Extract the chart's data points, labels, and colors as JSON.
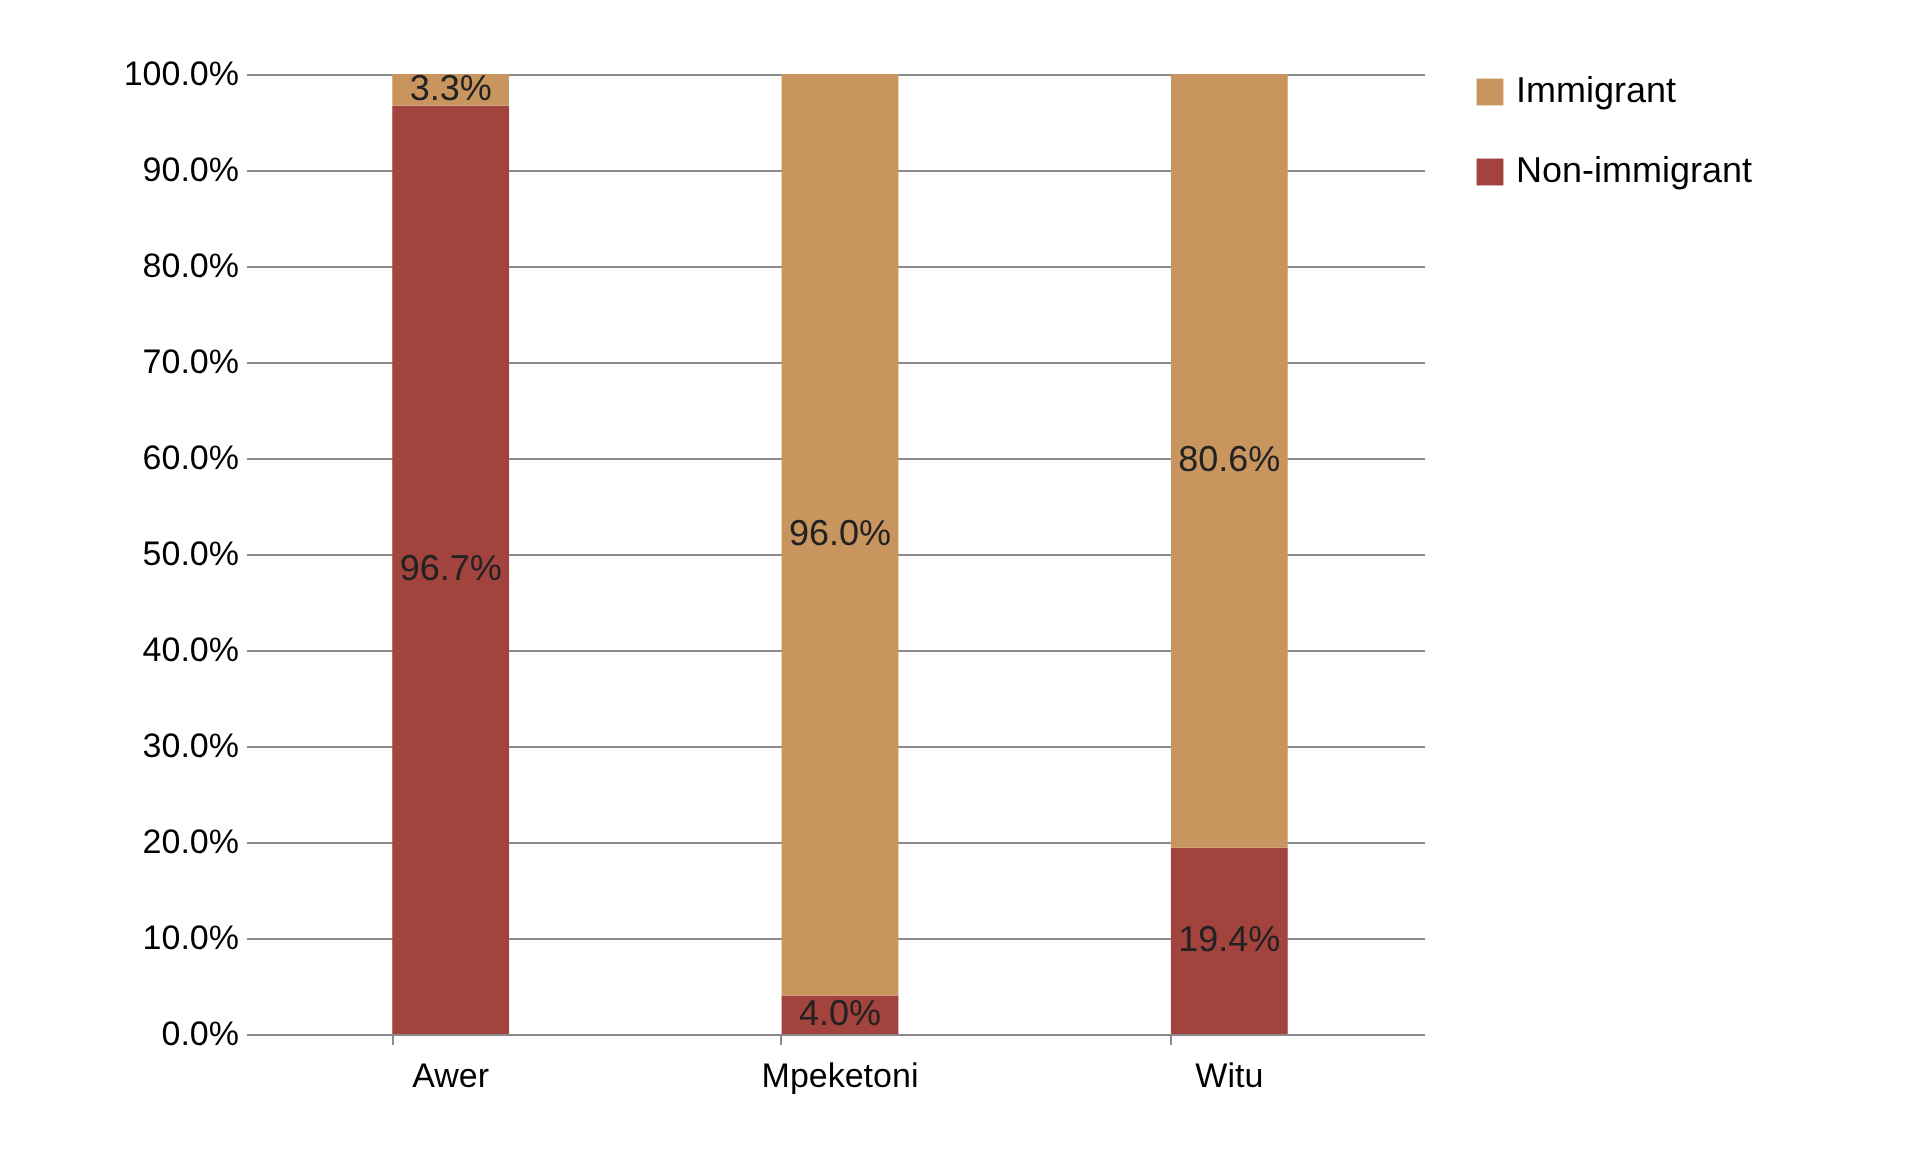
{
  "chart_data": {
    "type": "bar",
    "stacked": true,
    "categories": [
      "Awer",
      "Mpeketoni",
      "Witu"
    ],
    "series": [
      {
        "name": "Non-immigrant",
        "color": "#a3433e",
        "values": [
          96.7,
          4.0,
          19.4
        ],
        "value_labels": [
          "96.7%",
          "4.0%",
          "19.4%"
        ]
      },
      {
        "name": "Immigrant",
        "color": "#c9955e",
        "values": [
          3.3,
          96.0,
          80.6
        ],
        "value_labels": [
          "3.3%",
          "96.0%",
          "80.6%"
        ]
      }
    ],
    "ylim": [
      0,
      100
    ],
    "yticks": [
      {
        "value": 0,
        "label": "0.0%"
      },
      {
        "value": 10,
        "label": "10.0%"
      },
      {
        "value": 20,
        "label": "20.0%"
      },
      {
        "value": 30,
        "label": "30.0%"
      },
      {
        "value": 40,
        "label": "40.0%"
      },
      {
        "value": 50,
        "label": "50.0%"
      },
      {
        "value": 60,
        "label": "60.0%"
      },
      {
        "value": 70,
        "label": "70.0%"
      },
      {
        "value": 80,
        "label": "80.0%"
      },
      {
        "value": 90,
        "label": "90.0%"
      },
      {
        "value": 100,
        "label": "100.0%"
      }
    ],
    "grid": "y",
    "legend": "right"
  }
}
